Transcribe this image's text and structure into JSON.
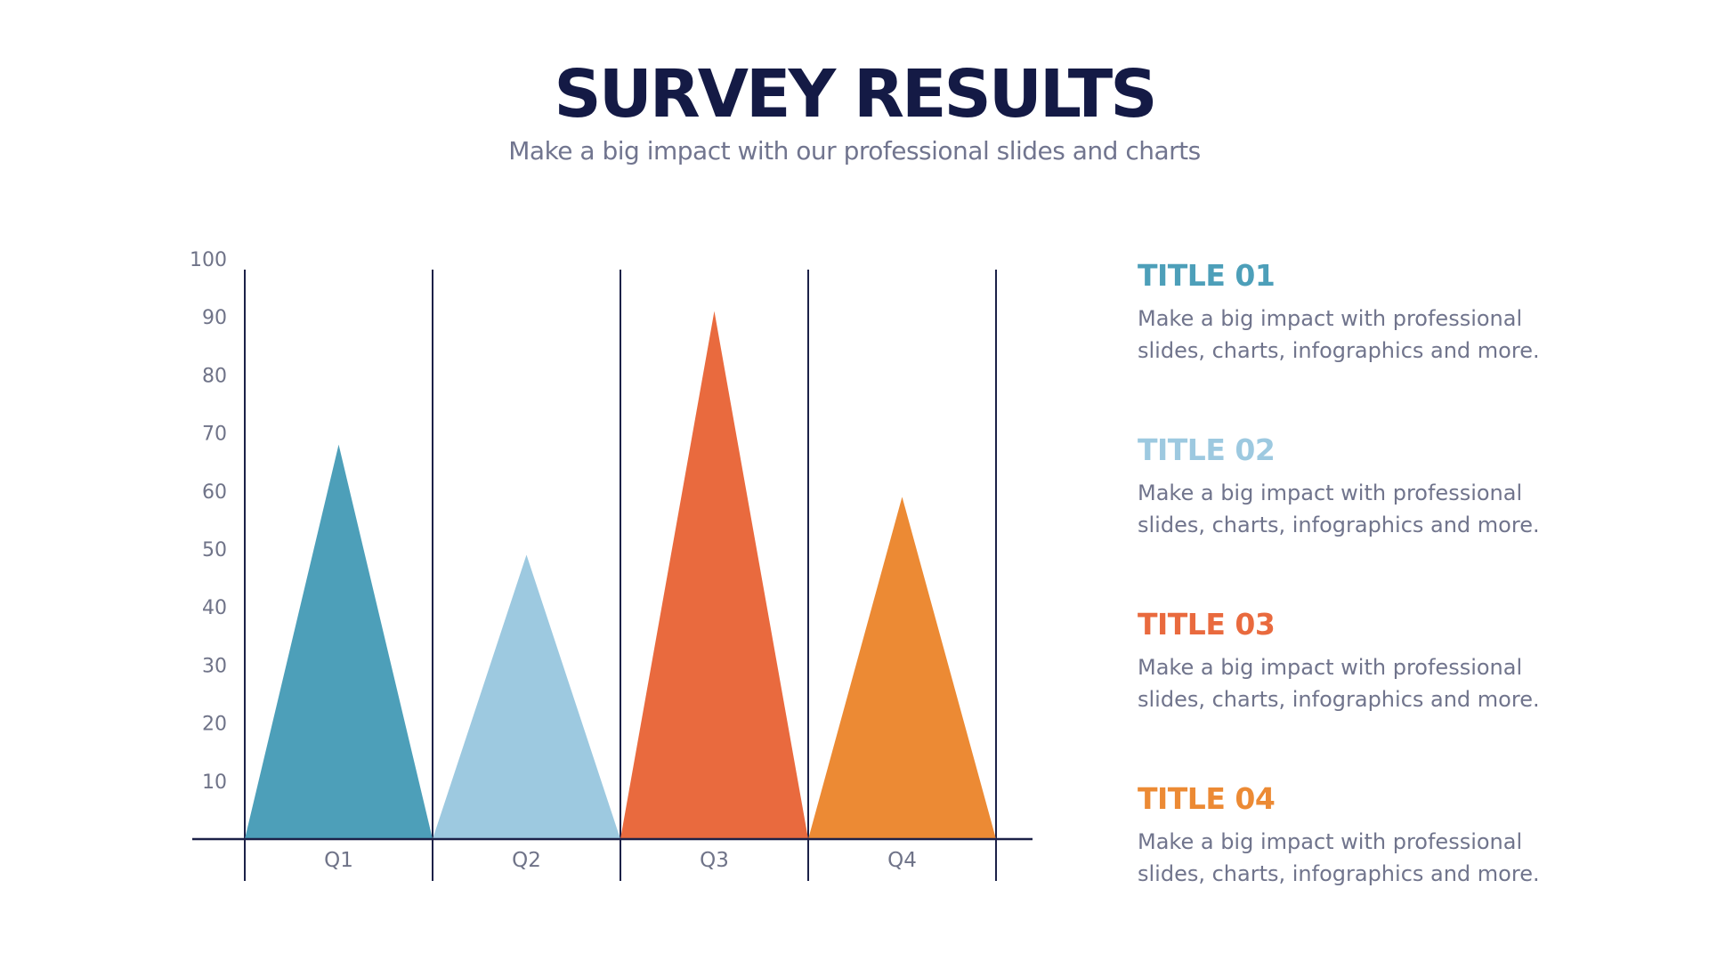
{
  "header": {
    "title": "SURVEY RESULTS",
    "subtitle": "Make a big impact with our professional slides and charts"
  },
  "chart_data": {
    "type": "bar",
    "mark_shape": "triangle",
    "categories": [
      "Q1",
      "Q2",
      "Q3",
      "Q4"
    ],
    "values": [
      68,
      49,
      91,
      59
    ],
    "colors": [
      "#4d9fb9",
      "#9dc9e0",
      "#e96a3e",
      "#ec8a34"
    ],
    "y_ticks": [
      10,
      20,
      30,
      40,
      50,
      60,
      70,
      80,
      90,
      100
    ],
    "ylim": [
      0,
      100
    ],
    "xlabel": "",
    "ylabel": "",
    "grid": "vertical separators",
    "legend_position": "right"
  },
  "legend": {
    "items": [
      {
        "title": "TITLE 01",
        "color": "#4d9fb9",
        "line1": "Make a big impact with professional",
        "line2": "slides, charts, infographics and more."
      },
      {
        "title": "TITLE 02",
        "color": "#9dc9e0",
        "line1": "Make a big impact with professional",
        "line2": "slides, charts, infographics and more."
      },
      {
        "title": "TITLE 03",
        "color": "#e96a3e",
        "line1": "Make a big impact with professional",
        "line2": "slides, charts, infographics and more."
      },
      {
        "title": "TITLE 04",
        "color": "#ec8a34",
        "line1": "Make a big impact with professional",
        "line2": "slides, charts, infographics and more."
      }
    ]
  },
  "colors": {
    "title": "#141a45",
    "axis": "#1c2148",
    "text_muted": "#70748c"
  }
}
